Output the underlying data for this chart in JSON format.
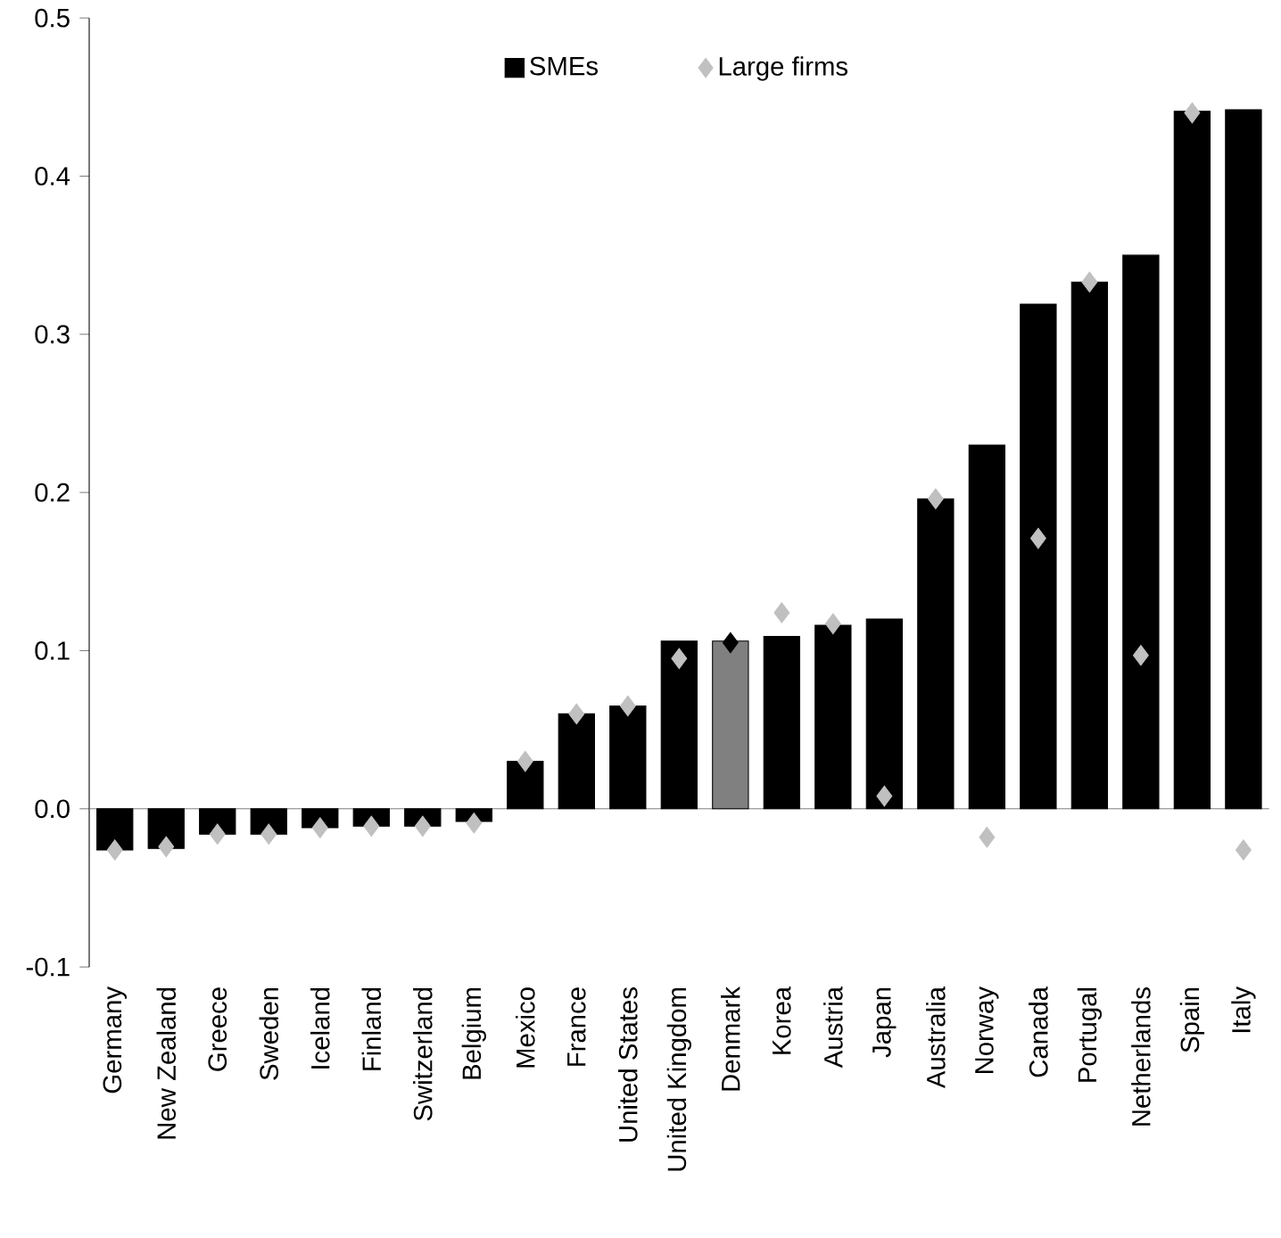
{
  "chart_data": {
    "type": "bar",
    "categories": [
      "Germany",
      "New Zealand",
      "Greece",
      "Sweden",
      "Iceland",
      "Finland",
      "Switzerland",
      "Belgium",
      "Mexico",
      "France",
      "United States",
      "United Kingdom",
      "Denmark",
      "Korea",
      "Austria",
      "Japan",
      "Australia",
      "Norway",
      "Canada",
      "Portugal",
      "Netherlands",
      "Spain",
      "Italy"
    ],
    "series": [
      {
        "name": "SMEs",
        "color": "#000000",
        "colors": [
          "#000000",
          "#000000",
          "#000000",
          "#000000",
          "#000000",
          "#000000",
          "#000000",
          "#000000",
          "#000000",
          "#000000",
          "#000000",
          "#000000",
          "#808080",
          "#000000",
          "#000000",
          "#000000",
          "#000000",
          "#000000",
          "#000000",
          "#000000",
          "#000000",
          "#000000",
          "#000000"
        ],
        "values": [
          -0.026,
          -0.025,
          -0.016,
          -0.016,
          -0.012,
          -0.011,
          -0.011,
          -0.008,
          0.03,
          0.06,
          0.065,
          0.106,
          0.106,
          0.109,
          0.116,
          0.12,
          0.196,
          0.23,
          0.319,
          0.333,
          0.35,
          0.441,
          0.442
        ]
      },
      {
        "name": "Large firms",
        "type": "scatter",
        "marker": "diamond",
        "color": "#c0c0c0",
        "colors": [
          "#c0c0c0",
          "#c0c0c0",
          "#c0c0c0",
          "#c0c0c0",
          "#c0c0c0",
          "#c0c0c0",
          "#c0c0c0",
          "#c0c0c0",
          "#c0c0c0",
          "#c0c0c0",
          "#c0c0c0",
          "#c0c0c0",
          "#000000",
          "#c0c0c0",
          "#c0c0c0",
          "#c0c0c0",
          "#c0c0c0",
          "#c0c0c0",
          "#c0c0c0",
          "#c0c0c0",
          "#c0c0c0",
          "#c0c0c0",
          "#c0c0c0"
        ],
        "values": [
          -0.026,
          -0.024,
          -0.016,
          -0.016,
          -0.012,
          -0.011,
          -0.011,
          -0.009,
          0.03,
          0.06,
          0.065,
          0.095,
          0.105,
          0.124,
          0.117,
          0.008,
          0.196,
          -0.018,
          0.171,
          0.333,
          0.097,
          0.44,
          -0.026
        ]
      }
    ],
    "ylim": [
      -0.1,
      0.5
    ],
    "yticks": [
      {
        "value": -0.1,
        "label": "-0.1"
      },
      {
        "value": 0,
        "label": "0.0"
      },
      {
        "value": 0.1,
        "label": "0.1"
      },
      {
        "value": 0.2,
        "label": "0.2"
      },
      {
        "value": 0.3,
        "label": "0.3"
      },
      {
        "value": 0.4,
        "label": "0.4"
      },
      {
        "value": 0.5,
        "label": "0.5"
      }
    ],
    "grid": false,
    "ref_lines": [
      {
        "axis": "y",
        "value": 0,
        "color": "#808080"
      }
    ],
    "legend": "top"
  }
}
